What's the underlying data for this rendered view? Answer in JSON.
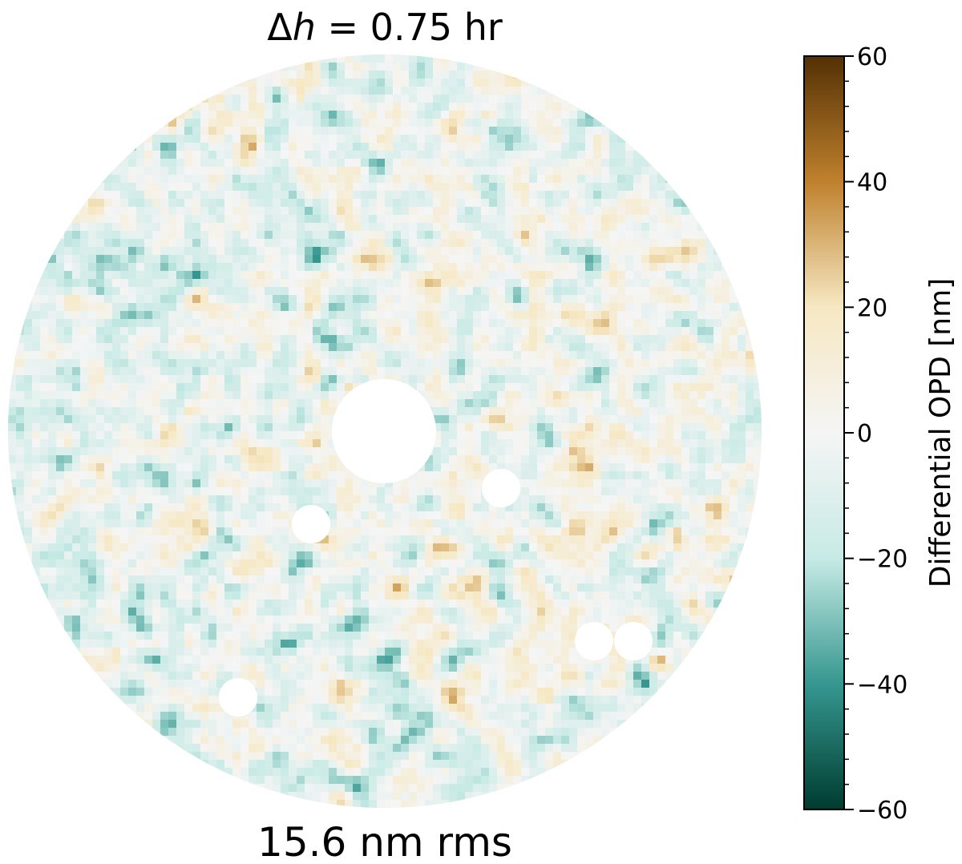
{
  "chart_data": {
    "type": "heatmap",
    "title_parts": {
      "delta": "Δ",
      "variable": "h",
      "rest": " = 0.75 hr"
    },
    "annotation": "15.6 nm rms",
    "map": {
      "shape": "circular pupil",
      "central_obscuration": true,
      "secondary_obscurations": 5
    },
    "colorbar": {
      "label": "Differential OPD [nm]",
      "range": [
        -60,
        60
      ],
      "ticks": [
        60,
        40,
        20,
        0,
        -20,
        -40,
        -60
      ],
      "tick_labels": [
        "60",
        "40",
        "20",
        "0",
        "−20",
        "−40",
        "−60"
      ],
      "colormap": "BrBG_r",
      "colors": {
        "low": "#003c30",
        "mid_low": "#35978f",
        "light_low": "#c7eae5",
        "mid": "#f5f5f5",
        "light_high": "#f6e8c3",
        "mid_high": "#bf812d",
        "high": "#543005"
      }
    }
  }
}
